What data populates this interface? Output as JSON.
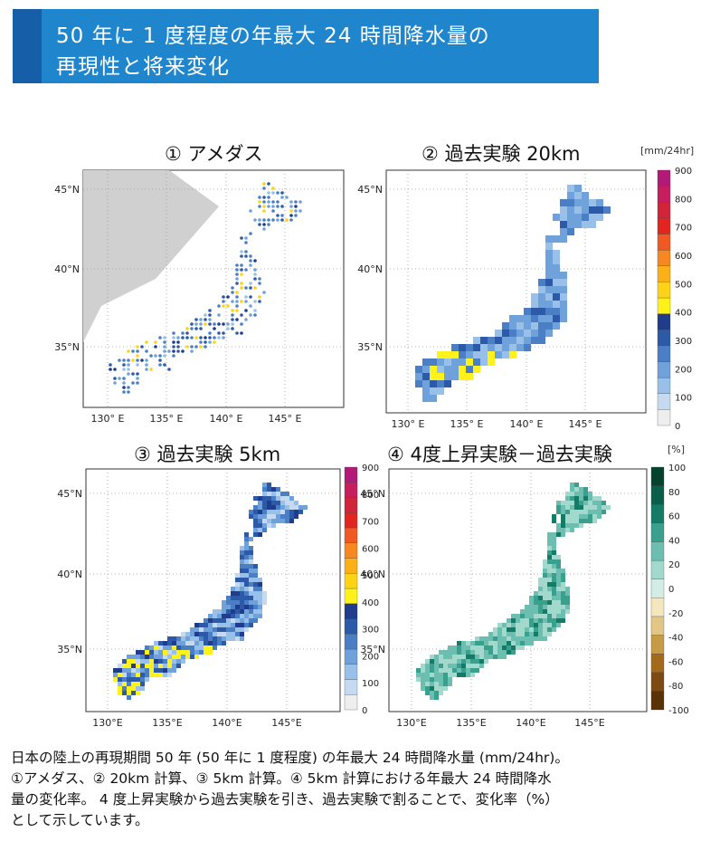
{
  "header": {
    "line1": "50 年に 1 度程度の年最大 24 時間降水量の",
    "line2": "再現性と将来変化"
  },
  "panels": [
    {
      "title": "① アメダス",
      "mode": "amedas"
    },
    {
      "title": "② 過去実験 20km",
      "mode": "p20",
      "unit": "[mm/24hr]"
    },
    {
      "title": "③ 過去実験 5km",
      "mode": "p5"
    },
    {
      "title": "④ 4度上昇実験－過去実験",
      "mode": "diff",
      "unit": "[%]"
    }
  ],
  "axes": {
    "lat_labels": [
      "45°N",
      "40°N",
      "35°N"
    ],
    "lon_labels": [
      "130° E",
      "135° E",
      "140° E",
      "145° E"
    ],
    "lon_labels_compact": [
      "130°E",
      "135°E",
      "140°E",
      "145°E"
    ]
  },
  "chart_data": [
    {
      "type": "heatmap",
      "title": "① アメダス",
      "xlim": [
        128,
        150
      ],
      "ylim": [
        30,
        46.5
      ],
      "xticks": [
        130,
        135,
        140,
        145
      ],
      "yticks": [
        35,
        40,
        45
      ],
      "colorbar": "precip"
    },
    {
      "type": "heatmap",
      "title": "② 過去実験 20km",
      "xlim": [
        128,
        150
      ],
      "ylim": [
        30,
        46.5
      ],
      "xticks": [
        130,
        135,
        140,
        145
      ],
      "yticks": [
        35,
        40,
        45
      ],
      "colorbar": "precip",
      "unit": "[mm/24hr]"
    },
    {
      "type": "heatmap",
      "title": "③ 過去実験 5km",
      "xlim": [
        128,
        150
      ],
      "ylim": [
        30,
        46.5
      ],
      "xticks": [
        130,
        135,
        140,
        145
      ],
      "yticks": [
        35,
        40,
        45
      ],
      "colorbar": "precip"
    },
    {
      "type": "heatmap",
      "title": "④ 4度上昇実験－過去実験",
      "xlim": [
        128,
        150
      ],
      "ylim": [
        30,
        46.5
      ],
      "xticks": [
        130,
        135,
        140,
        145
      ],
      "yticks": [
        35,
        40,
        45
      ],
      "colorbar": "diff",
      "unit": "[%]"
    }
  ],
  "colorbars": {
    "precip": {
      "labels": [
        "900",
        "800",
        "700",
        "600",
        "500",
        "400",
        "300",
        "200",
        "100",
        "0"
      ],
      "colors": [
        "#eeeeee",
        "#c5daf1",
        "#99c0e8",
        "#6fa1da",
        "#4a7fc6",
        "#2c5aa8",
        "#1f3d8c",
        "#fff21a",
        "#fdd317",
        "#fbb017",
        "#f78720",
        "#ef5a24",
        "#e2261f",
        "#d1243a",
        "#c71f5e",
        "#b31a78"
      ]
    },
    "diff": {
      "labels": [
        "100",
        "80",
        "60",
        "40",
        "20",
        "0",
        "-20",
        "-40",
        "-60",
        "-80",
        "-100"
      ],
      "colors": [
        "#5a3208",
        "#7d4a14",
        "#a36a1c",
        "#c79a45",
        "#e2c685",
        "#f5e7bd",
        "#d2ece6",
        "#a3d8cd",
        "#6cbfb0",
        "#38a08d",
        "#137b66",
        "#0a5e4a",
        "#05432f"
      ]
    }
  },
  "caption": {
    "line1": "日本の陸上の再現期間 50 年 (50 年に 1 度程度) の年最大 24 時間降水量 (mm/24hr)。",
    "line2": "①アメダス、② 20km 計算、③ 5km 計算。④ 5km 計算における年最大 24 時間降水",
    "line3": "量の変化率。 4 度上昇実験から過去実験を引き、過去実験で割ることで、変化率（%）",
    "line4": "として示しています。"
  }
}
